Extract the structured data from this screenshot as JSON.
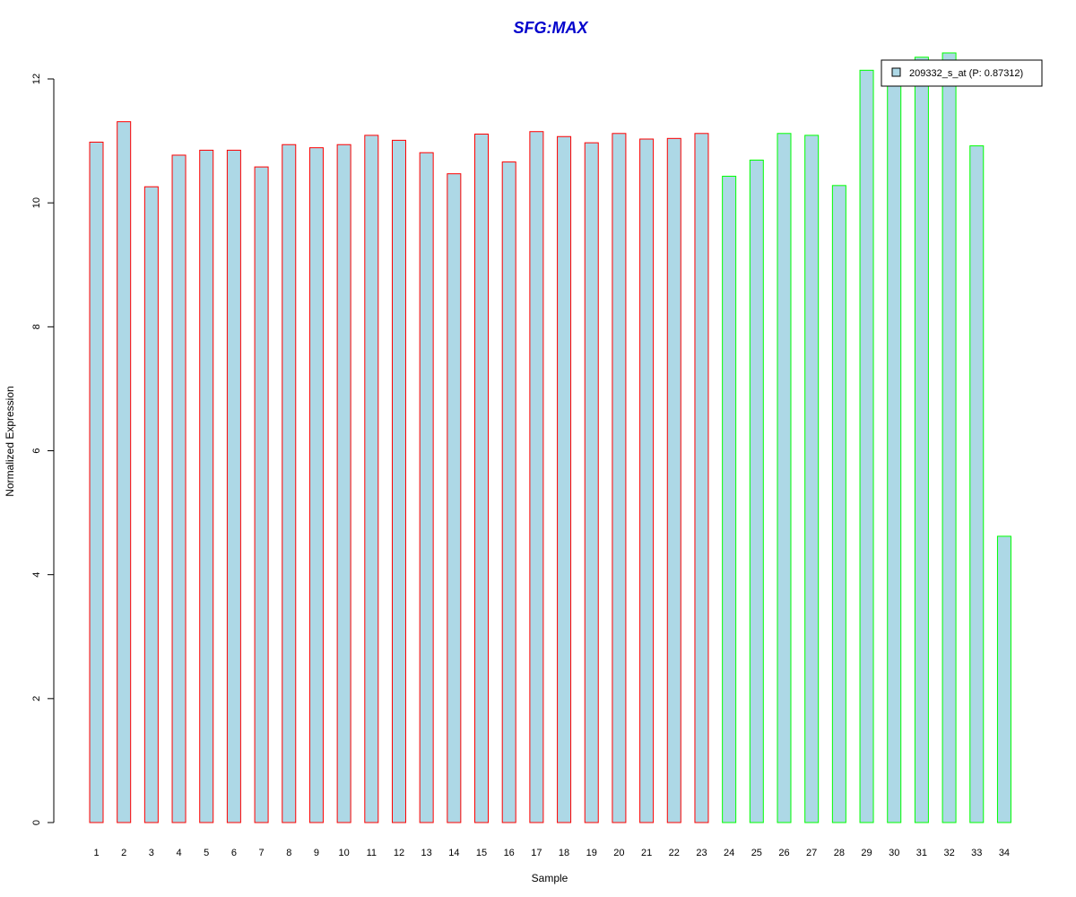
{
  "chart_data": {
    "type": "bar",
    "title": "SFG:MAX",
    "xlabel": "Sample",
    "ylabel": "Normalized Expression",
    "ylim": [
      0,
      12
    ],
    "yticks": [
      "0",
      "2",
      "4",
      "6",
      "8",
      "10",
      "12"
    ],
    "grid": false,
    "legend": {
      "label": "209332_s_at (P: 0.87312)",
      "placement": "top-right"
    },
    "categories": [
      "1",
      "2",
      "3",
      "4",
      "5",
      "6",
      "7",
      "8",
      "9",
      "10",
      "11",
      "12",
      "13",
      "14",
      "15",
      "16",
      "17",
      "18",
      "19",
      "20",
      "21",
      "22",
      "23",
      "24",
      "25",
      "26",
      "27",
      "28",
      "29",
      "30",
      "31",
      "32",
      "33",
      "34"
    ],
    "values": [
      10.98,
      11.31,
      10.26,
      10.77,
      10.85,
      10.85,
      10.58,
      10.94,
      10.89,
      10.94,
      11.09,
      11.01,
      10.81,
      10.47,
      11.11,
      10.66,
      11.15,
      11.07,
      10.97,
      11.12,
      11.03,
      11.04,
      11.12,
      10.43,
      10.69,
      11.12,
      11.09,
      10.28,
      12.14,
      12.0,
      12.35,
      12.42,
      10.92,
      4.62
    ],
    "groups": [
      1,
      1,
      1,
      1,
      1,
      1,
      1,
      1,
      1,
      1,
      1,
      1,
      1,
      1,
      1,
      1,
      1,
      1,
      1,
      1,
      1,
      1,
      1,
      2,
      2,
      2,
      2,
      2,
      2,
      2,
      2,
      2,
      2,
      2
    ],
    "colors": {
      "fill": "#add8e6",
      "group1_border": "#ff0000",
      "group2_border": "#00ff00",
      "axis": "#000000",
      "title": "#0000cc"
    }
  }
}
